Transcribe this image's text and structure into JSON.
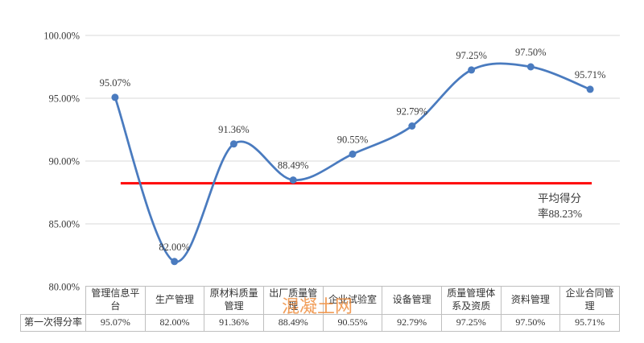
{
  "watermark": {
    "text": "混凝土网",
    "color": "#EF8C3C"
  },
  "table": {
    "row_label": "第一次得分率",
    "values": [
      "95.07%",
      "82.00%",
      "91.36%",
      "88.49%",
      "90.55%",
      "92.79%",
      "97.25%",
      "97.50%",
      "95.71%"
    ]
  },
  "chart_data": {
    "type": "line",
    "title": "",
    "xlabel": "",
    "ylabel": "",
    "categories": [
      "管理信息平台",
      "生产管理",
      "原材料质量管理",
      "出厂质量管理",
      "企业试验室",
      "设备管理",
      "质量管理体系及资质",
      "资料管理",
      "企业合同管理"
    ],
    "series": [
      {
        "name": "第一次得分率",
        "values": [
          95.07,
          82.0,
          91.36,
          88.49,
          90.55,
          92.79,
          97.25,
          97.5,
          95.71
        ],
        "labels": [
          "95.07%",
          "82.00%",
          "91.36%",
          "88.49%",
          "90.55%",
          "92.79%",
          "97.25%",
          "97.50%",
          "95.71%"
        ],
        "color": "#4a7bbf",
        "marker": "circle"
      }
    ],
    "y_ticks": [
      {
        "value": 100,
        "label": "100.00%"
      },
      {
        "value": 95,
        "label": "95.00%"
      },
      {
        "value": 90,
        "label": "90.00%"
      },
      {
        "value": 85,
        "label": "85.00%"
      },
      {
        "value": 80,
        "label": "80.00%"
      }
    ],
    "ylim": [
      80,
      100
    ],
    "grid": true,
    "grid_color": "#d9d9d9",
    "legend_position": "none",
    "smooth": true,
    "average_line": {
      "value": 88.23,
      "color": "#ff0000",
      "annotation_lines": [
        "平均得分",
        "率88.23%"
      ]
    }
  }
}
